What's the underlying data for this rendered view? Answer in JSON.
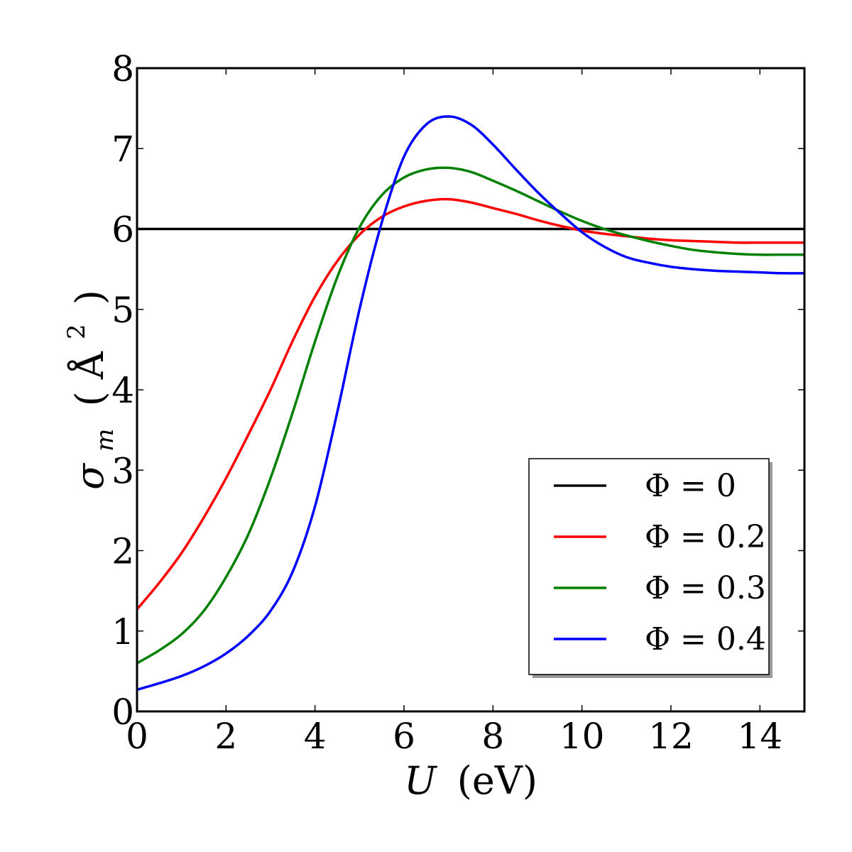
{
  "chart_data": {
    "type": "line",
    "xlabel": {
      "var": "U",
      "unit": "(eV)"
    },
    "ylabel": {
      "var": "σ",
      "sub": "m",
      "unit_open": "(",
      "unit": "Å",
      "sup": "2",
      "unit_close": ")"
    },
    "xlim": [
      0,
      15
    ],
    "ylim": [
      0,
      8
    ],
    "xticks": [
      0,
      2,
      4,
      6,
      8,
      10,
      12,
      14
    ],
    "yticks": [
      0,
      1,
      2,
      3,
      4,
      5,
      6,
      7,
      8
    ],
    "grid": false,
    "legend_position": "lower-right",
    "x": [
      0,
      0.5,
      1,
      1.5,
      2,
      2.5,
      3,
      3.5,
      4,
      4.5,
      5,
      5.5,
      6,
      6.5,
      7,
      7.5,
      8,
      8.5,
      9,
      9.5,
      10,
      10.5,
      11,
      11.5,
      12,
      12.5,
      13,
      13.5,
      14,
      14.5,
      15
    ],
    "series": [
      {
        "name": "Φ = 0",
        "color": "#000000",
        "values": [
          6,
          6,
          6,
          6,
          6,
          6,
          6,
          6,
          6,
          6,
          6,
          6,
          6,
          6,
          6,
          6,
          6,
          6,
          6,
          6,
          6,
          6,
          6,
          6,
          6,
          6,
          6,
          6,
          6,
          6,
          6
        ]
      },
      {
        "name": "Φ = 0.2",
        "color": "#ff0000",
        "values": [
          1.27,
          1.6,
          1.97,
          2.41,
          2.9,
          3.44,
          4.0,
          4.61,
          5.16,
          5.6,
          5.93,
          6.15,
          6.28,
          6.35,
          6.37,
          6.33,
          6.26,
          6.19,
          6.11,
          6.04,
          5.98,
          5.94,
          5.91,
          5.88,
          5.86,
          5.85,
          5.84,
          5.83,
          5.83,
          5.83,
          5.83
        ]
      },
      {
        "name": "Φ = 0.3",
        "color": "#008000",
        "values": [
          0.6,
          0.76,
          0.96,
          1.25,
          1.67,
          2.2,
          2.9,
          3.72,
          4.6,
          5.4,
          6.02,
          6.42,
          6.64,
          6.74,
          6.76,
          6.71,
          6.6,
          6.48,
          6.35,
          6.22,
          6.1,
          6.0,
          5.92,
          5.85,
          5.79,
          5.74,
          5.71,
          5.69,
          5.68,
          5.68,
          5.68
        ]
      },
      {
        "name": "Φ = 0.4",
        "color": "#0000ff",
        "values": [
          0.27,
          0.35,
          0.44,
          0.56,
          0.72,
          0.94,
          1.25,
          1.74,
          2.55,
          3.72,
          5.0,
          6.08,
          6.9,
          7.3,
          7.4,
          7.3,
          7.05,
          6.75,
          6.46,
          6.2,
          5.96,
          5.78,
          5.65,
          5.58,
          5.53,
          5.5,
          5.48,
          5.47,
          5.46,
          5.45,
          5.45
        ]
      }
    ]
  }
}
